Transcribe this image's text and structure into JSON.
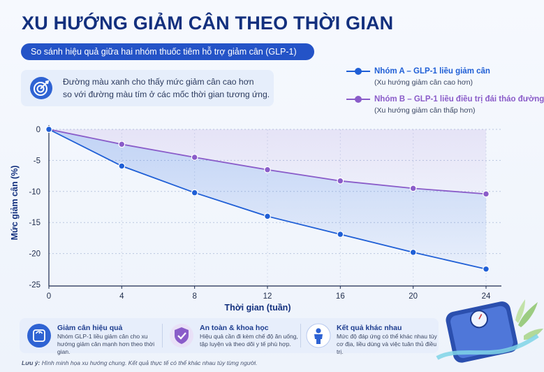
{
  "title": "XU HƯỚNG GIẢM CÂN THEO THỜI GIAN",
  "subtitle": "So sánh hiệu quả giữa hai nhóm thuốc tiêm hỗ trợ giảm cân (GLP-1)",
  "note": {
    "icon": "target-icon",
    "line1": "Đường màu xanh cho thấy mức giảm cân cao hơn",
    "line2": "so với đường màu tím ở các mốc thời gian tương ứng."
  },
  "legend": [
    {
      "name": "Nhóm A – GLP-1 liều giảm cân",
      "sub": "(Xu hướng giảm cân cao hơn)",
      "color": "#1f5fd6"
    },
    {
      "name": "Nhóm B – GLP-1 liều điều trị đái tháo đường",
      "sub": "(Xu hướng giảm cân thấp hơn)",
      "color": "#8a5cc9"
    }
  ],
  "chart_data": {
    "type": "line",
    "x": [
      0,
      4,
      8,
      12,
      16,
      20,
      24
    ],
    "series": [
      {
        "name": "Nhóm A – GLP-1 liều giảm cân",
        "values": [
          0,
          -5.9,
          -10.2,
          -14.0,
          -16.9,
          -19.8,
          -22.5
        ],
        "color": "#1f5fd6"
      },
      {
        "name": "Nhóm B – GLP-1 liều điều trị đái tháo đường",
        "values": [
          0,
          -2.4,
          -4.5,
          -6.5,
          -8.3,
          -9.5,
          -10.4
        ],
        "color": "#8a5cc9"
      }
    ],
    "xlabel": "Thời gian (tuần)",
    "ylabel": "Mức giảm cân (%)",
    "xticks": [
      "0",
      "4",
      "8",
      "12",
      "16",
      "20",
      "24"
    ],
    "yticks": [
      "0",
      "-5",
      "-10",
      "-15",
      "-20",
      "-25"
    ],
    "xlim": [
      0,
      24
    ],
    "ylim": [
      -25,
      0
    ],
    "grid": true,
    "legend_position": "top-right"
  },
  "features": [
    {
      "icon": "scale-icon",
      "title": "Giảm cân hiệu quả",
      "desc": "Nhóm GLP-1 liều giảm cân cho xu hướng giảm cân mạnh hơn theo thời gian."
    },
    {
      "icon": "shield-check-icon",
      "title": "An toàn & khoa học",
      "desc": "Hiệu quả cần đi kèm chế độ ăn uống, tập luyện và theo dõi y tế phù hợp."
    },
    {
      "icon": "person-icon",
      "title": "Kết quả khác nhau",
      "desc": "Mức độ đáp ứng có thể khác nhau tùy cơ địa, liều dùng và việc tuân thủ điều trị."
    }
  ],
  "footnote_label": "Lưu ý:",
  "footnote_text": " Hình minh họa xu hướng chung. Kết quả thực tế có thể khác nhau tùy từng người."
}
